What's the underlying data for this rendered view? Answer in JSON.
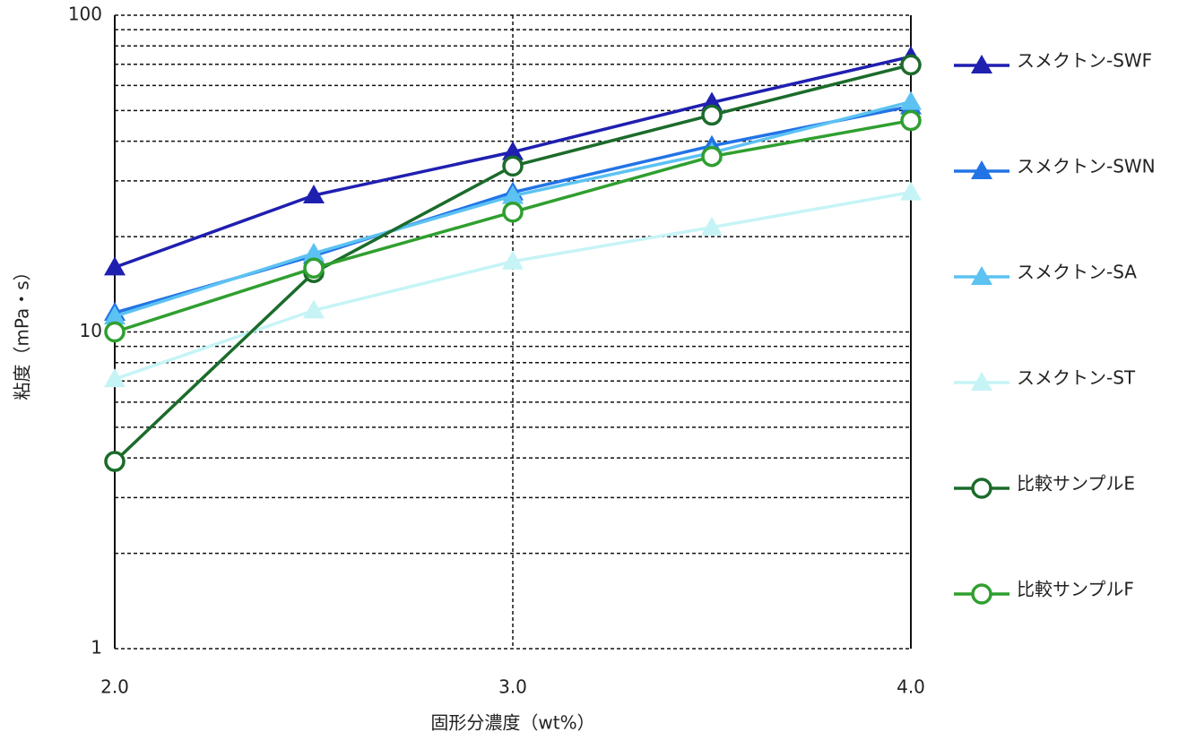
{
  "chart_data": {
    "type": "line",
    "x_label": "固形分濃度（wt%）",
    "y_label": "粘度（mPa・s）",
    "x": [
      2.0,
      2.5,
      3.0,
      3.5,
      4.0
    ],
    "xlim": [
      2.0,
      4.0
    ],
    "xticks": [
      {
        "value": 2.0,
        "label": "2.0"
      },
      {
        "value": 3.0,
        "label": "3.0"
      },
      {
        "value": 4.0,
        "label": "4.0"
      }
    ],
    "ylim": [
      1,
      100
    ],
    "yticks": [
      1,
      10,
      100
    ],
    "yminor_ticks": [
      2,
      3,
      4,
      5,
      6,
      7,
      8,
      9,
      20,
      30,
      40,
      50,
      60,
      70,
      80,
      90
    ],
    "log_y": true,
    "grid": true,
    "legend": "right",
    "series": [
      {
        "name": "スメクトン-SWF",
        "color": "#1f1fb0",
        "marker": "triangle",
        "values": [
          16,
          27,
          37,
          53,
          74
        ]
      },
      {
        "name": "スメクトン-SWN",
        "color": "#2273e6",
        "marker": "triangle",
        "values": [
          11.5,
          17.4,
          27.6,
          38.7,
          51.6
        ]
      },
      {
        "name": "スメクトン-SA",
        "color": "#5cc2f2",
        "marker": "triangle",
        "values": [
          11.2,
          17.7,
          26.9,
          36.8,
          53.3
        ]
      },
      {
        "name": "スメクトン-ST",
        "color": "#c6f4f6",
        "marker": "triangle",
        "values": [
          7.1,
          11.7,
          16.7,
          21.4,
          27.6
        ]
      },
      {
        "name": "比較サンプルE",
        "color": "#1b6b2a",
        "marker": "circle",
        "values": [
          3.9,
          15.4,
          33.4,
          48.4,
          69.7
        ]
      },
      {
        "name": "比較サンプルF",
        "color": "#2f9f2f",
        "marker": "circle",
        "values": [
          10,
          15.9,
          23.9,
          35.8,
          46.5
        ]
      }
    ]
  }
}
